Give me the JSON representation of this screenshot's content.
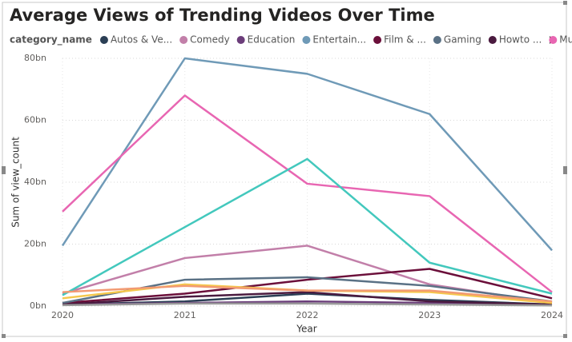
{
  "chart_data": {
    "type": "line",
    "title": "Average Views of Trending Videos Over Time",
    "legend_title": "category_name",
    "x_label": "Year",
    "y_label": "Sum of view_count",
    "x": [
      2020,
      2021,
      2022,
      2023,
      2024
    ],
    "xlim": [
      2020,
      2024
    ],
    "ylim": [
      0,
      80
    ],
    "yticks": [
      {
        "value": 0,
        "label": "0bn"
      },
      {
        "value": 20,
        "label": "20bn"
      },
      {
        "value": 40,
        "label": "40bn"
      },
      {
        "value": 60,
        "label": "60bn"
      },
      {
        "value": 80,
        "label": "80bn"
      }
    ],
    "grid": true,
    "series": [
      {
        "name": "Autos & Ve...",
        "color": "#2b3f55",
        "values": [
          0.5,
          1.5,
          4,
          2,
          0.5
        ]
      },
      {
        "name": "Comedy",
        "color": "#c27fa9",
        "values": [
          4,
          15.5,
          19.5,
          7,
          1
        ]
      },
      {
        "name": "Education",
        "color": "#6b3d7a",
        "values": [
          0.5,
          1,
          1.5,
          1,
          0.3
        ]
      },
      {
        "name": "Entertain...",
        "color": "#6f9ab7",
        "values": [
          19.5,
          80,
          75,
          62,
          18
        ]
      },
      {
        "name": "Film & ...",
        "color": "#6b0f3a",
        "values": [
          1,
          4,
          8.5,
          12,
          2.5
        ]
      },
      {
        "name": "Gaming",
        "color": "#5a7185",
        "values": [
          1,
          8.5,
          9.3,
          6.5,
          1.5
        ]
      },
      {
        "name": "Howto ...",
        "color": "#4a1a3f",
        "values": [
          0.5,
          3,
          4.5,
          1.5,
          0.5
        ]
      },
      {
        "name": "Music",
        "color": "#e866b2",
        "values": [
          30.5,
          68,
          39.5,
          35.5,
          4.5
        ]
      },
      {
        "color": "#43c8bd",
        "values": [
          3.5,
          25.5,
          47.5,
          14,
          4
        ]
      },
      {
        "color": "#f5c84c",
        "values": [
          2.5,
          7,
          5,
          4.5,
          1
        ]
      },
      {
        "color": "#f29a72",
        "values": [
          4.5,
          6.5,
          5,
          5,
          1.5
        ]
      },
      {
        "color": "#9a9a9a",
        "values": [
          0.3,
          0.8,
          0.8,
          0.5,
          0.2
        ]
      }
    ]
  }
}
